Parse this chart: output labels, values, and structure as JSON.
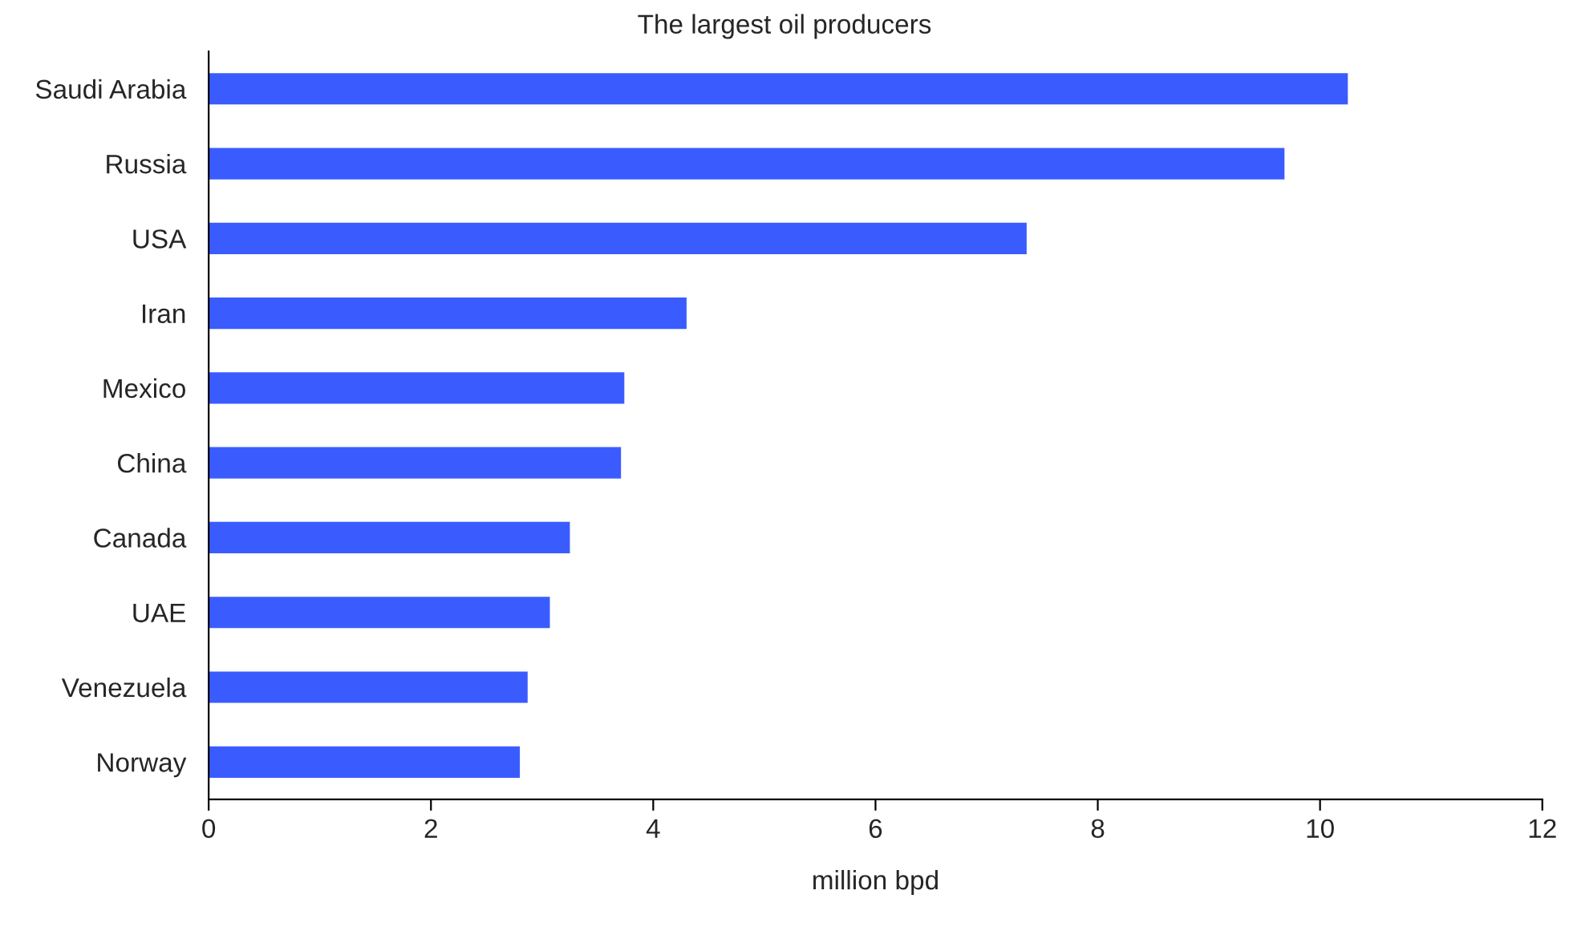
{
  "chart_data": {
    "type": "bar",
    "orientation": "horizontal",
    "title": "The largest oil producers",
    "xlabel": "million bpd",
    "categories": [
      "Saudi Arabia",
      "Russia",
      "USA",
      "Iran",
      "Mexico",
      "China",
      "Canada",
      "UAE",
      "Venezuela",
      "Norway"
    ],
    "values": [
      10.25,
      9.68,
      7.36,
      4.3,
      3.74,
      3.71,
      3.25,
      3.07,
      2.87,
      2.8
    ],
    "color": "#3a5cff",
    "xlim": [
      0,
      12
    ],
    "xticks": [
      0,
      2,
      4,
      6,
      8,
      10,
      12
    ],
    "grid": false
  }
}
